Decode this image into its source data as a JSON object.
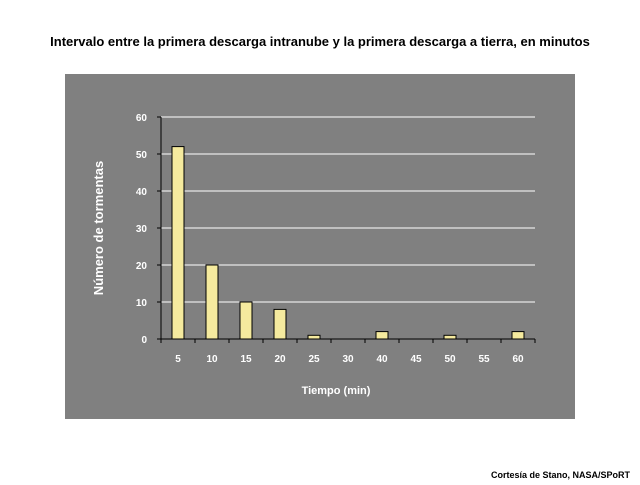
{
  "chart_data": {
    "type": "bar",
    "title": "Intervalo entre la primera descarga intranube y la primera descarga a tierra, en minutos",
    "xlabel": "Tiempo (min)",
    "ylabel": "Número de tormentas",
    "categories": [
      "5",
      "10",
      "15",
      "20",
      "25",
      "30",
      "40",
      "45",
      "50",
      "55",
      "60"
    ],
    "values": [
      52,
      20,
      10,
      8,
      1,
      0,
      2,
      0,
      1,
      0,
      2
    ],
    "ylim": [
      0,
      60
    ],
    "yticks": [
      0,
      10,
      20,
      30,
      40,
      50,
      60
    ],
    "grid": true,
    "legend": "none",
    "bar_color": "#f5ea9e",
    "background_color": "#808080"
  },
  "credit": "Cortesía de Stano, NASA/SPoRT"
}
